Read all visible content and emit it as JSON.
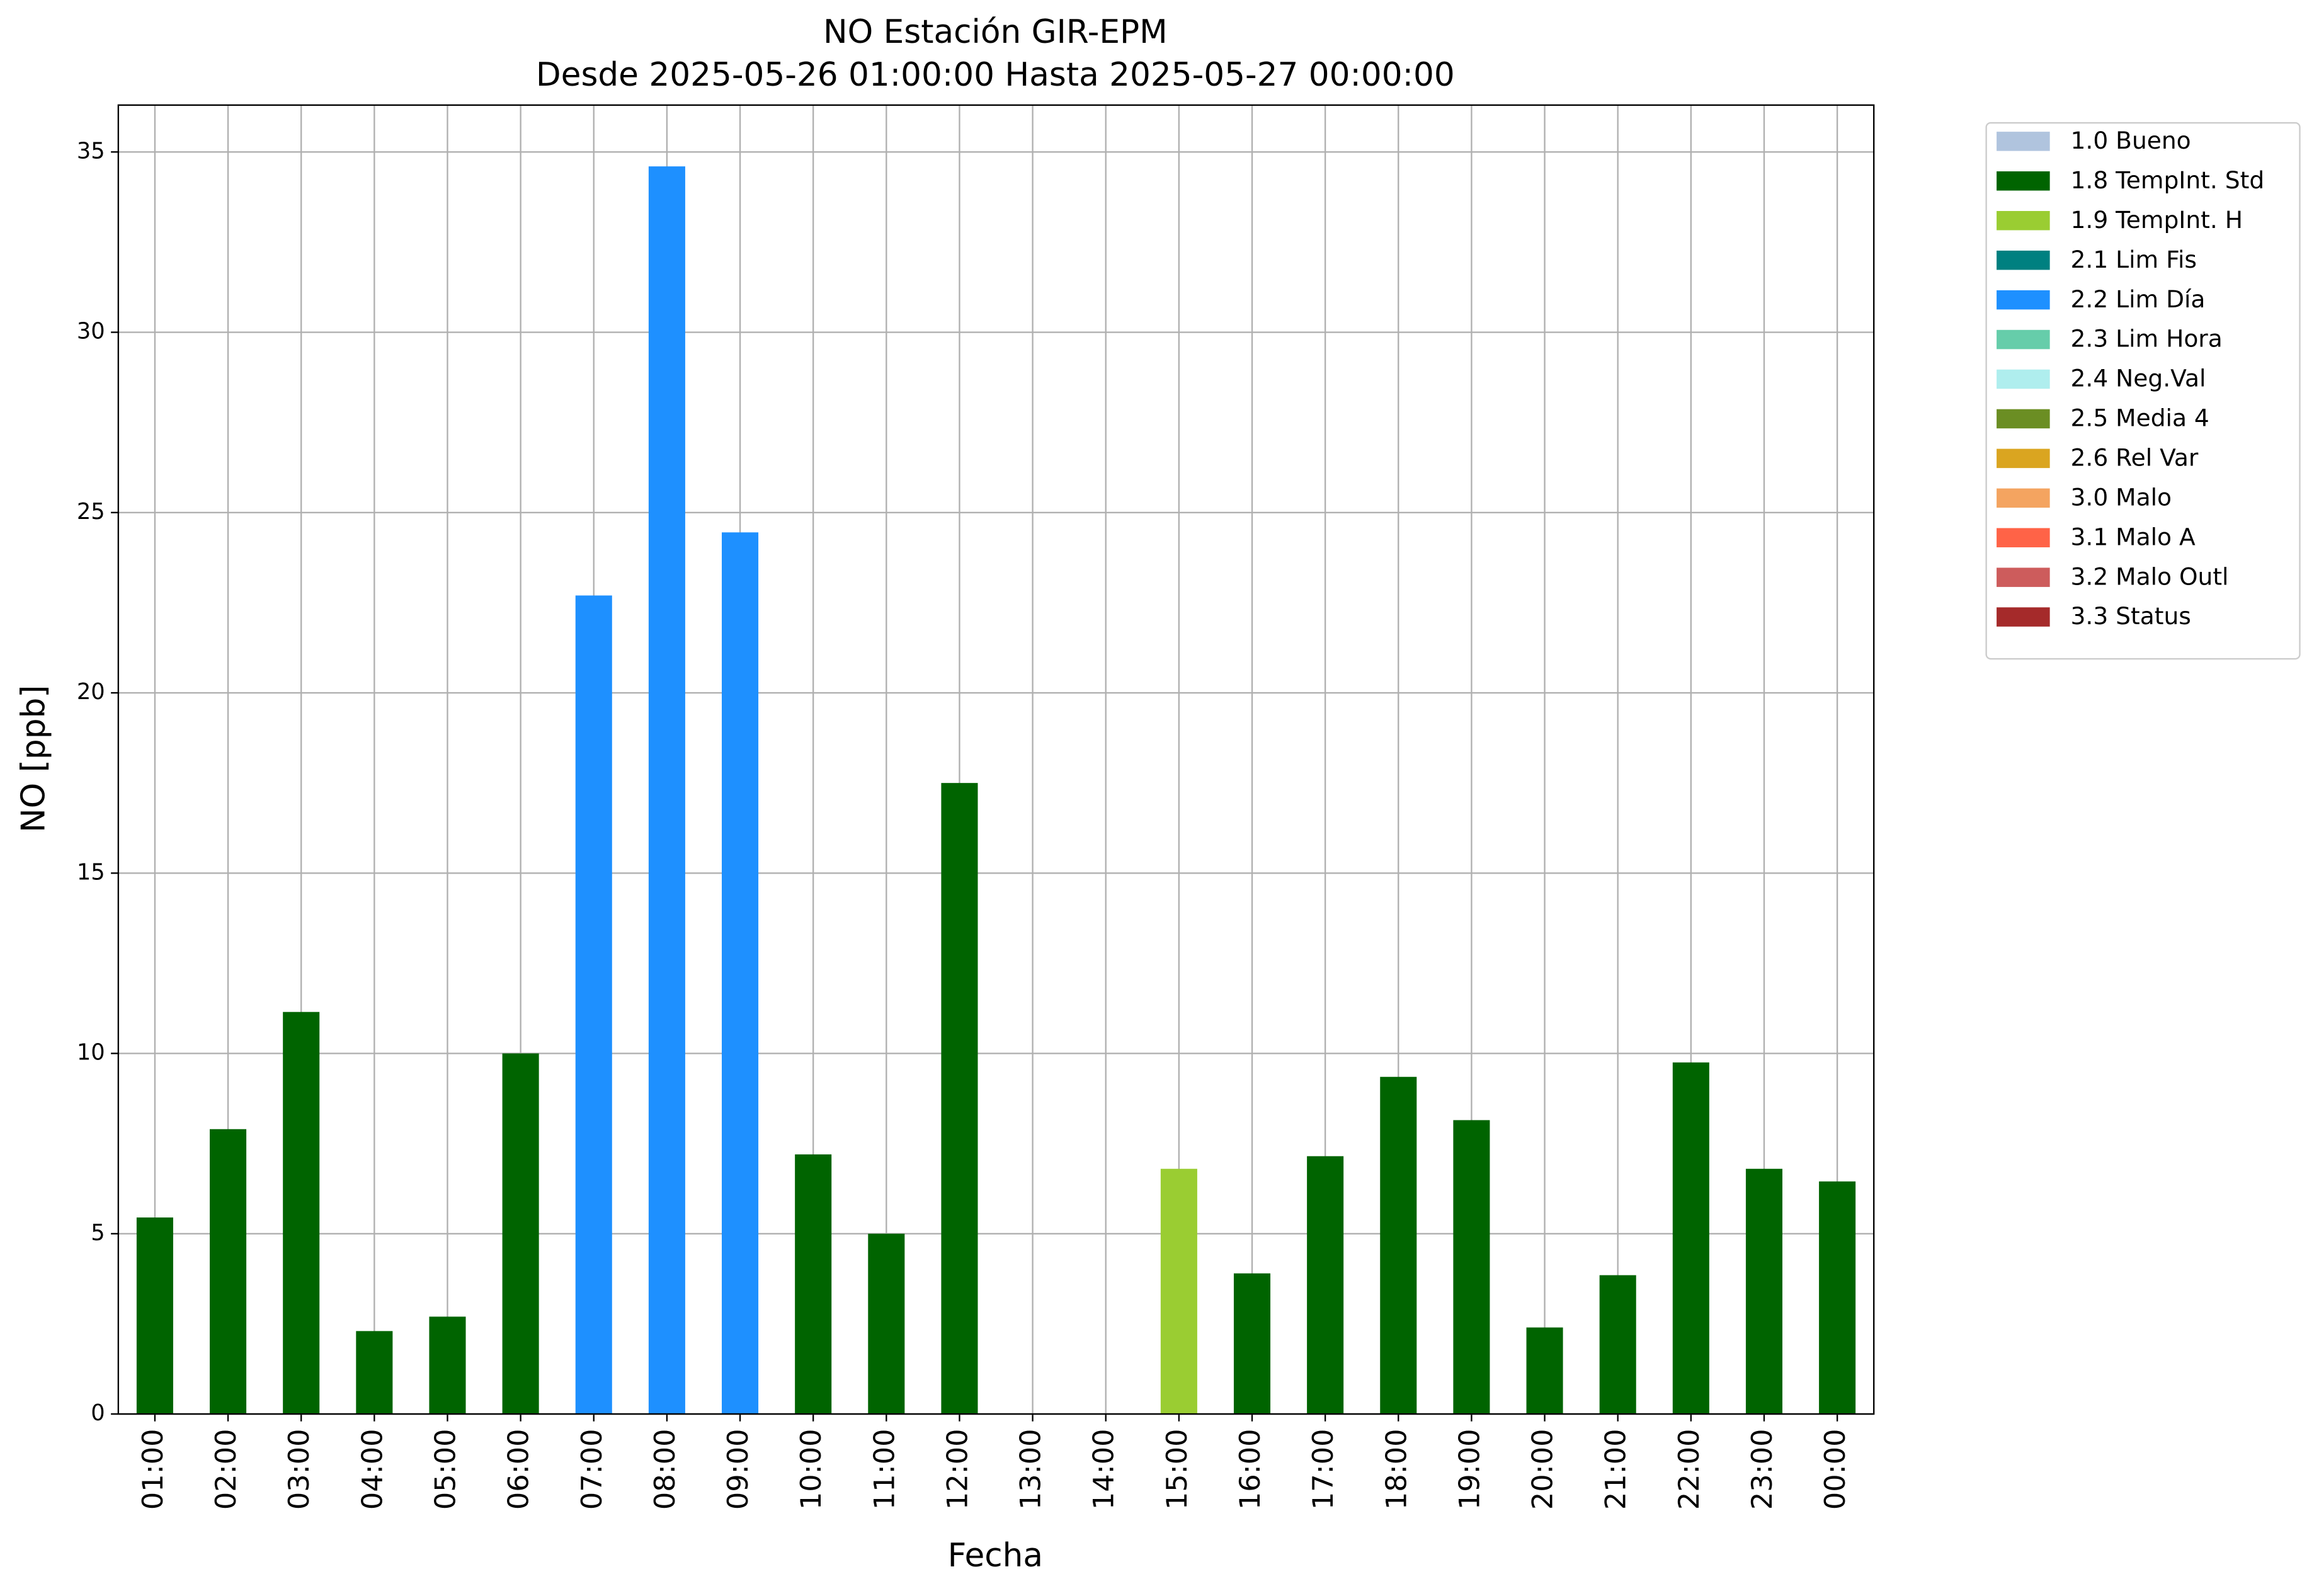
{
  "chart_data": {
    "type": "bar",
    "title": "NO Estación GIR-EPM",
    "subtitle": "Desde 2025-05-26 01:00:00 Hasta 2025-05-27 00:00:00",
    "x_label": "Fecha",
    "y_label": "NO [ppb]",
    "categories": [
      "01:00",
      "02:00",
      "03:00",
      "04:00",
      "05:00",
      "06:00",
      "07:00",
      "08:00",
      "09:00",
      "10:00",
      "11:00",
      "12:00",
      "13:00",
      "14:00",
      "15:00",
      "16:00",
      "17:00",
      "18:00",
      "19:00",
      "20:00",
      "21:00",
      "22:00",
      "23:00",
      "00:00"
    ],
    "series": [
      {
        "name": "1.0 Bueno",
        "color": "#b0c4de",
        "values": [
          null,
          null,
          null,
          null,
          null,
          null,
          null,
          null,
          null,
          null,
          null,
          null,
          null,
          null,
          null,
          null,
          null,
          null,
          null,
          null,
          null,
          null,
          null,
          null
        ]
      },
      {
        "name": "1.8 TempInt. Std",
        "color": "#006400",
        "values": [
          5.45,
          7.9,
          11.15,
          2.3,
          2.7,
          10.0,
          null,
          null,
          null,
          7.2,
          5.0,
          17.5,
          null,
          null,
          null,
          3.9,
          7.15,
          9.35,
          8.15,
          2.4,
          3.85,
          9.75,
          6.8,
          6.45
        ]
      },
      {
        "name": "1.9 TempInt. H",
        "color": "#9acd32",
        "values": [
          null,
          null,
          null,
          null,
          null,
          null,
          null,
          null,
          null,
          null,
          null,
          null,
          null,
          null,
          6.8,
          null,
          null,
          null,
          null,
          null,
          null,
          null,
          null,
          null
        ]
      },
      {
        "name": "2.1 Lim Fis",
        "color": "#008080",
        "values": [
          null,
          null,
          null,
          null,
          null,
          null,
          null,
          null,
          null,
          null,
          null,
          null,
          null,
          null,
          null,
          null,
          null,
          null,
          null,
          null,
          null,
          null,
          null,
          null
        ]
      },
      {
        "name": "2.2 Lim Día",
        "color": "#1e90ff",
        "values": [
          null,
          null,
          null,
          null,
          null,
          null,
          22.7,
          34.6,
          24.45,
          null,
          null,
          null,
          null,
          null,
          null,
          null,
          null,
          null,
          null,
          null,
          null,
          null,
          null,
          null
        ]
      },
      {
        "name": "2.3 Lim Hora",
        "color": "#66cdaa",
        "values": [
          null,
          null,
          null,
          null,
          null,
          null,
          null,
          null,
          null,
          null,
          null,
          null,
          null,
          null,
          null,
          null,
          null,
          null,
          null,
          null,
          null,
          null,
          null,
          null
        ]
      },
      {
        "name": "2.4 Neg.Val",
        "color": "#afeeee",
        "values": [
          null,
          null,
          null,
          null,
          null,
          null,
          null,
          null,
          null,
          null,
          null,
          null,
          null,
          null,
          null,
          null,
          null,
          null,
          null,
          null,
          null,
          null,
          null,
          null
        ]
      },
      {
        "name": "2.5 Media 4",
        "color": "#6b8e23",
        "values": [
          null,
          null,
          null,
          null,
          null,
          null,
          null,
          null,
          null,
          null,
          null,
          null,
          null,
          null,
          null,
          null,
          null,
          null,
          null,
          null,
          null,
          null,
          null,
          null
        ]
      },
      {
        "name": "2.6 Rel Var",
        "color": "#daa520",
        "values": [
          null,
          null,
          null,
          null,
          null,
          null,
          null,
          null,
          null,
          null,
          null,
          null,
          null,
          null,
          null,
          null,
          null,
          null,
          null,
          null,
          null,
          null,
          null,
          null
        ]
      },
      {
        "name": "3.0 Malo",
        "color": "#f4a460",
        "values": [
          null,
          null,
          null,
          null,
          null,
          null,
          null,
          null,
          null,
          null,
          null,
          null,
          null,
          null,
          null,
          null,
          null,
          null,
          null,
          null,
          null,
          null,
          null,
          null
        ]
      },
      {
        "name": "3.1 Malo A",
        "color": "#ff6347",
        "values": [
          null,
          null,
          null,
          null,
          null,
          null,
          null,
          null,
          null,
          null,
          null,
          null,
          null,
          null,
          null,
          null,
          null,
          null,
          null,
          null,
          null,
          null,
          null,
          null
        ]
      },
      {
        "name": "3.2 Malo Outl",
        "color": "#cd5c5c",
        "values": [
          null,
          null,
          null,
          null,
          null,
          null,
          null,
          null,
          null,
          null,
          null,
          null,
          null,
          null,
          null,
          null,
          null,
          null,
          null,
          null,
          null,
          null,
          null,
          null
        ]
      },
      {
        "name": "3.3 Status",
        "color": "#a52a2a",
        "values": [
          null,
          null,
          null,
          null,
          null,
          null,
          null,
          null,
          null,
          null,
          null,
          null,
          null,
          null,
          null,
          null,
          null,
          null,
          null,
          null,
          null,
          null,
          null,
          null
        ]
      }
    ],
    "ylim": [
      0,
      36.3
    ],
    "yticks": [
      0,
      5,
      10,
      15,
      20,
      25,
      30,
      35
    ],
    "grid": true,
    "legend": "outside upper right"
  }
}
